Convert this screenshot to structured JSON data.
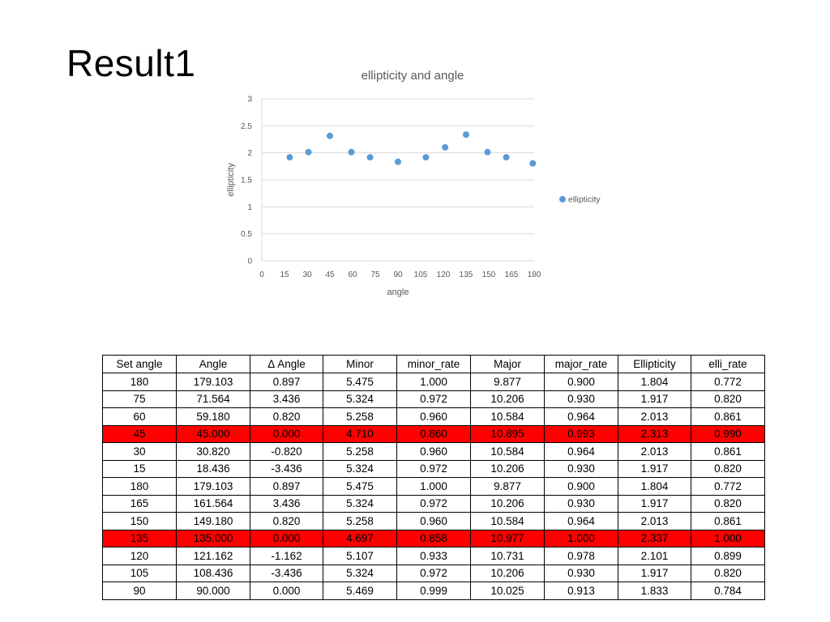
{
  "slide": {
    "title": "Result1"
  },
  "chart_data": {
    "type": "scatter",
    "title": "ellipticity and angle",
    "xlabel": "angle",
    "ylabel": "ellipticity",
    "xlim": [
      0,
      180
    ],
    "ylim": [
      0,
      3
    ],
    "xticks": [
      0,
      15,
      30,
      45,
      60,
      75,
      90,
      105,
      120,
      135,
      150,
      165,
      180
    ],
    "xtick_labels": [
      "0",
      "15",
      "30",
      "45",
      "60",
      "75",
      "90",
      "105",
      "120",
      "135",
      "150",
      "165",
      "180"
    ],
    "yticks": [
      0,
      0.5,
      1,
      1.5,
      2,
      2.5,
      3
    ],
    "ytick_labels": [
      "0",
      "0.5",
      "1",
      "1.5",
      "2",
      "2.5",
      "3"
    ],
    "grid": true,
    "legend_position": "right",
    "series": [
      {
        "name": "ellipticity",
        "color": "#5b9bd5",
        "points": [
          {
            "x": 18.436,
            "y": 1.917
          },
          {
            "x": 30.82,
            "y": 2.013
          },
          {
            "x": 45.0,
            "y": 2.313
          },
          {
            "x": 59.18,
            "y": 2.013
          },
          {
            "x": 71.564,
            "y": 1.917
          },
          {
            "x": 90.0,
            "y": 1.833
          },
          {
            "x": 108.436,
            "y": 1.917
          },
          {
            "x": 121.162,
            "y": 2.101
          },
          {
            "x": 135.0,
            "y": 2.337
          },
          {
            "x": 149.18,
            "y": 2.013
          },
          {
            "x": 161.564,
            "y": 1.917
          },
          {
            "x": 179.103,
            "y": 1.804
          }
        ]
      }
    ]
  },
  "table": {
    "headers": [
      "Set angle",
      "Angle",
      "Δ Angle",
      "Minor",
      "minor_rate",
      "Major",
      "major_rate",
      "Ellipticity",
      "elli_rate"
    ],
    "highlight_color": "#ff0000",
    "rows": [
      {
        "highlight": false,
        "cells": [
          "180",
          "179.103",
          "0.897",
          "5.475",
          "1.000",
          "9.877",
          "0.900",
          "1.804",
          "0.772"
        ]
      },
      {
        "highlight": false,
        "cells": [
          "75",
          "71.564",
          "3.436",
          "5.324",
          "0.972",
          "10.206",
          "0.930",
          "1.917",
          "0.820"
        ]
      },
      {
        "highlight": false,
        "cells": [
          "60",
          "59.180",
          "0.820",
          "5.258",
          "0.960",
          "10.584",
          "0.964",
          "2.013",
          "0.861"
        ]
      },
      {
        "highlight": true,
        "cells": [
          "45",
          "45.000",
          "0.000",
          "4.710",
          "0.860",
          "10.895",
          "0.993",
          "2.313",
          "0.990"
        ]
      },
      {
        "highlight": false,
        "cells": [
          "30",
          "30.820",
          "-0.820",
          "5.258",
          "0.960",
          "10.584",
          "0.964",
          "2.013",
          "0.861"
        ]
      },
      {
        "highlight": false,
        "cells": [
          "15",
          "18.436",
          "-3.436",
          "5.324",
          "0.972",
          "10.206",
          "0.930",
          "1.917",
          "0.820"
        ]
      },
      {
        "highlight": false,
        "cells": [
          "180",
          "179.103",
          "0.897",
          "5.475",
          "1.000",
          "9.877",
          "0.900",
          "1.804",
          "0.772"
        ]
      },
      {
        "highlight": false,
        "cells": [
          "165",
          "161.564",
          "3.436",
          "5.324",
          "0.972",
          "10.206",
          "0.930",
          "1.917",
          "0.820"
        ]
      },
      {
        "highlight": false,
        "cells": [
          "150",
          "149.180",
          "0.820",
          "5.258",
          "0.960",
          "10.584",
          "0.964",
          "2.013",
          "0.861"
        ]
      },
      {
        "highlight": true,
        "cells": [
          "135",
          "135.000",
          "0.000",
          "4.697",
          "0.858",
          "10.977",
          "1.000",
          "2.337",
          "1.000"
        ]
      },
      {
        "highlight": false,
        "cells": [
          "120",
          "121.162",
          "-1.162",
          "5.107",
          "0.933",
          "10.731",
          "0.978",
          "2.101",
          "0.899"
        ]
      },
      {
        "highlight": false,
        "cells": [
          "105",
          "108.436",
          "-3.436",
          "5.324",
          "0.972",
          "10.206",
          "0.930",
          "1.917",
          "0.820"
        ]
      },
      {
        "highlight": false,
        "cells": [
          "90",
          "90.000",
          "0.000",
          "5.469",
          "0.999",
          "10.025",
          "0.913",
          "1.833",
          "0.784"
        ]
      }
    ]
  }
}
